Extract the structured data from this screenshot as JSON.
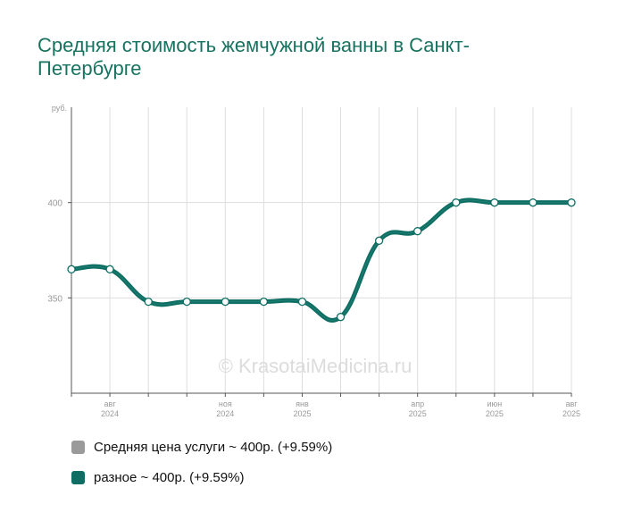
{
  "colors": {
    "title": "#17735f",
    "series": "#0e6e63",
    "grid": "#dddddd",
    "axis": "#555555",
    "tick_text": "#999999",
    "watermark": "#dcdcdc",
    "legend_avg": "#9a9a9a"
  },
  "watermark": "© KrasotaiMedicina.ru",
  "chart_data": {
    "type": "line",
    "title": "Средняя стоимость жемчужной ванны в Санкт-Петербурге",
    "ylabel": "руб.",
    "ylim": [
      300,
      450
    ],
    "y_ticks": [
      350,
      400
    ],
    "x": [
      "2024-07",
      "2024-08",
      "2024-09",
      "2024-10",
      "2024-11",
      "2024-12",
      "2025-01",
      "2025-02",
      "2025-03",
      "2025-04",
      "2025-05",
      "2025-06",
      "2025-07",
      "2025-08"
    ],
    "x_tick_labels": [
      {
        "month": "авг",
        "year": "2024",
        "index": 1
      },
      {
        "month": "ноя",
        "year": "2024",
        "index": 4
      },
      {
        "month": "янв",
        "year": "2025",
        "index": 6
      },
      {
        "month": "апр",
        "year": "2025",
        "index": 9
      },
      {
        "month": "июн",
        "year": "2025",
        "index": 11
      },
      {
        "month": "авг",
        "year": "2025",
        "index": 13
      }
    ],
    "series": [
      {
        "name": "разное",
        "values": [
          365,
          365,
          348,
          348,
          348,
          348,
          348,
          340,
          380,
          385,
          400,
          400,
          400,
          400
        ]
      }
    ],
    "grid": true,
    "legend": [
      {
        "label": "Средняя цена услуги ~ 400р. (+9.59%)",
        "color": "#9a9a9a"
      },
      {
        "label": "разное ~ 400р. (+9.59%)",
        "color": "#0e6e63"
      }
    ]
  }
}
